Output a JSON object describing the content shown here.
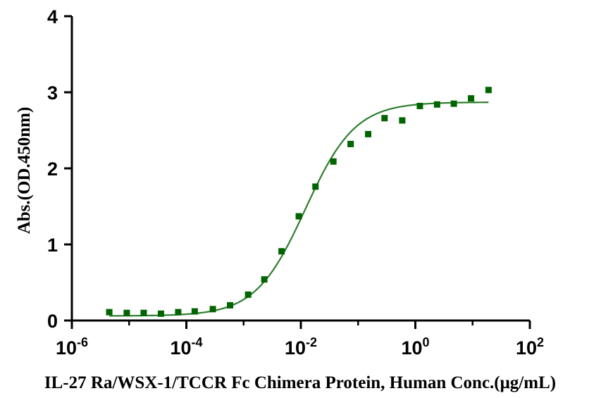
{
  "chart_data": {
    "type": "scatter",
    "title": "",
    "xlabel": "IL-27 Ra/WSX-1/TCCR Fc Chimera Protein, Human Conc.(μg/mL)",
    "ylabel": "Abs.(OD.450nm)",
    "xscale": "log",
    "xlim": [
      1e-06,
      100
    ],
    "ylim": [
      0,
      4
    ],
    "grid": false,
    "legend": "none",
    "colors": {
      "points": "#006400",
      "curve": "#2e7d2e",
      "axis": "#000000"
    },
    "y_ticks": [
      {
        "value": 0,
        "label": "0"
      },
      {
        "value": 1,
        "label": "1"
      },
      {
        "value": 2,
        "label": "2"
      },
      {
        "value": 3,
        "label": "3"
      },
      {
        "value": 4,
        "label": "4"
      }
    ],
    "x_ticks": [
      {
        "value": 1e-06,
        "base": "10",
        "exp": "-6"
      },
      {
        "value": 0.0001,
        "base": "10",
        "exp": "-4"
      },
      {
        "value": 0.01,
        "base": "10",
        "exp": "-2"
      },
      {
        "value": 1,
        "base": "10",
        "exp": "0"
      },
      {
        "value": 100,
        "base": "10",
        "exp": "2"
      }
    ],
    "series": [
      {
        "marker": "square",
        "x": [
          4.5e-06,
          9.1e-06,
          1.8e-05,
          3.6e-05,
          7.2e-05,
          0.00014,
          0.00029,
          0.00058,
          0.0012,
          0.0023,
          0.0046,
          0.0092,
          0.018,
          0.037,
          0.074,
          0.15,
          0.29,
          0.59,
          1.2,
          2.4,
          4.7,
          9.4,
          19
        ],
        "y": [
          0.11,
          0.1,
          0.1,
          0.09,
          0.11,
          0.12,
          0.15,
          0.2,
          0.34,
          0.54,
          0.91,
          1.37,
          1.76,
          2.09,
          2.32,
          2.45,
          2.66,
          2.63,
          2.82,
          2.84,
          2.85,
          2.92,
          3.03
        ]
      }
    ],
    "fit_curve": {
      "model": "4PL",
      "bottom": 0.06,
      "top": 2.87,
      "ec50": 0.012,
      "hill": 1.0,
      "x_range": [
        4.5e-06,
        19
      ]
    }
  }
}
